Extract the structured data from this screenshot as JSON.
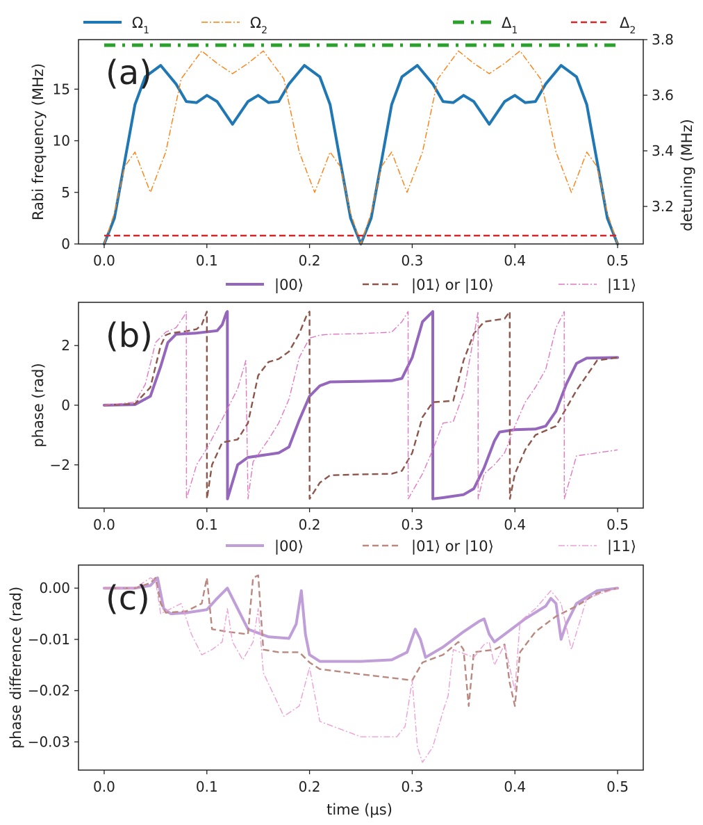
{
  "figure": {
    "panels": [
      "(a)",
      "(b)",
      "(c)"
    ]
  },
  "chart_data": [
    {
      "type": "line",
      "panel_label": "(a)",
      "xlabel": "",
      "ylabel": "Rabi frequency (MHz)",
      "ylabel_right": "detuning (MHz)",
      "xlim": [
        -0.025,
        0.525
      ],
      "ylim": [
        0,
        19.8
      ],
      "ylim_right": [
        3.065,
        3.8
      ],
      "xticks": [
        "0.0",
        "0.1",
        "0.2",
        "0.3",
        "0.4",
        "0.5"
      ],
      "xtick_values": [
        0.0,
        0.1,
        0.2,
        0.3,
        0.4,
        0.5
      ],
      "yticks": [
        "0",
        "5",
        "10",
        "15"
      ],
      "ytick_values": [
        0,
        5,
        10,
        15
      ],
      "yticks_right": [
        "3.2",
        "3.4",
        "3.6",
        "3.8"
      ],
      "ytick_right_values": [
        3.2,
        3.4,
        3.6,
        3.8
      ],
      "legend": [
        {
          "label": "Ω",
          "sub": "1",
          "color": "#1f77b4",
          "style": "solid-thick"
        },
        {
          "label": "Ω",
          "sub": "2",
          "color": "#ff7f0e",
          "style": "dashdot"
        },
        {
          "label": "Δ",
          "sub": "1",
          "color": "#2ca02c",
          "style": "dashdot-thick"
        },
        {
          "label": "Δ",
          "sub": "2",
          "color": "#d62728",
          "style": "dashed"
        }
      ],
      "series": [
        {
          "name": "Ω1",
          "axis": "left",
          "color": "#1f77b4",
          "x": [
            0.0,
            0.01,
            0.02,
            0.03,
            0.04,
            0.055,
            0.07,
            0.08,
            0.09,
            0.1,
            0.11,
            0.125,
            0.14,
            0.15,
            0.16,
            0.17,
            0.18,
            0.195,
            0.21,
            0.22,
            0.23,
            0.24,
            0.25,
            0.26,
            0.27,
            0.28,
            0.29,
            0.305,
            0.32,
            0.33,
            0.34,
            0.35,
            0.36,
            0.375,
            0.39,
            0.4,
            0.41,
            0.42,
            0.43,
            0.445,
            0.46,
            0.47,
            0.48,
            0.49,
            0.5
          ],
          "y": [
            0,
            2.5,
            8.0,
            13.5,
            16.2,
            17.3,
            15.5,
            13.8,
            13.7,
            14.4,
            13.8,
            11.6,
            13.8,
            14.4,
            13.7,
            13.8,
            15.5,
            17.3,
            16.2,
            13.5,
            8.0,
            2.5,
            0,
            2.5,
            8.0,
            13.5,
            16.2,
            17.3,
            15.5,
            13.8,
            13.7,
            14.4,
            13.8,
            11.6,
            13.8,
            14.4,
            13.7,
            13.8,
            15.5,
            17.3,
            16.2,
            13.5,
            8.0,
            2.5,
            0
          ]
        },
        {
          "name": "Ω2",
          "axis": "left",
          "color": "#ff7f0e",
          "x": [
            0.0,
            0.01,
            0.02,
            0.03,
            0.045,
            0.06,
            0.075,
            0.095,
            0.11,
            0.125,
            0.14,
            0.155,
            0.175,
            0.19,
            0.205,
            0.22,
            0.23,
            0.24,
            0.25,
            0.26,
            0.27,
            0.28,
            0.295,
            0.31,
            0.325,
            0.345,
            0.36,
            0.375,
            0.39,
            0.405,
            0.425,
            0.44,
            0.455,
            0.47,
            0.48,
            0.49,
            0.5
          ],
          "y": [
            0,
            3.0,
            7.5,
            8.9,
            5.0,
            8.9,
            16.0,
            18.7,
            17.5,
            16.5,
            17.5,
            18.7,
            16.0,
            8.9,
            5.0,
            8.9,
            7.5,
            3.0,
            0,
            3.0,
            7.5,
            8.9,
            5.0,
            8.9,
            16.0,
            18.7,
            17.5,
            16.5,
            17.5,
            18.7,
            16.0,
            8.9,
            5.0,
            8.9,
            7.5,
            3.0,
            0
          ]
        },
        {
          "name": "Δ1",
          "axis": "right",
          "color": "#2ca02c",
          "x": [
            0.0,
            0.5
          ],
          "y": [
            3.78,
            3.78
          ]
        },
        {
          "name": "Δ2",
          "axis": "right",
          "color": "#d62728",
          "x": [
            0.0,
            0.5
          ],
          "y": [
            3.095,
            3.095
          ]
        }
      ]
    },
    {
      "type": "line",
      "panel_label": "(b)",
      "xlabel": "",
      "ylabel": "phase (rad)",
      "xlim": [
        -0.025,
        0.525
      ],
      "ylim": [
        -3.45,
        3.45
      ],
      "xticks": [
        "0.0",
        "0.1",
        "0.2",
        "0.3",
        "0.4",
        "0.5"
      ],
      "xtick_values": [
        0.0,
        0.1,
        0.2,
        0.3,
        0.4,
        0.5
      ],
      "yticks": [
        "2",
        "0",
        "−2"
      ],
      "ytick_values": [
        2,
        0,
        -2
      ],
      "legend": [
        {
          "label": "|00⟩",
          "color": "#9467bd",
          "style": "solid-thick"
        },
        {
          "label": "|01⟩ or |10⟩",
          "color": "#8c564b",
          "style": "dashed"
        },
        {
          "label": "|11⟩",
          "color": "#e377c2",
          "style": "dashdot"
        }
      ],
      "series": [
        {
          "name": "|00⟩",
          "color": "#9467bd",
          "x": [
            0.0,
            0.03,
            0.045,
            0.055,
            0.062,
            0.07,
            0.09,
            0.11,
            0.115,
            0.119,
            0.12,
            0.1201,
            0.13,
            0.14,
            0.16,
            0.17,
            0.18,
            0.19,
            0.2,
            0.21,
            0.22,
            0.25,
            0.28,
            0.29,
            0.3,
            0.31,
            0.32,
            0.3201,
            0.33,
            0.35,
            0.36,
            0.37,
            0.38,
            0.385,
            0.4,
            0.42,
            0.43,
            0.44,
            0.45,
            0.46,
            0.47,
            0.5
          ],
          "y": [
            0,
            0.02,
            0.3,
            1.3,
            2.1,
            2.38,
            2.42,
            2.5,
            2.7,
            3.1,
            3.14,
            -3.14,
            -2.0,
            -1.75,
            -1.65,
            -1.6,
            -1.4,
            -0.5,
            0.3,
            0.65,
            0.78,
            0.8,
            0.82,
            0.9,
            1.6,
            2.8,
            3.14,
            -3.14,
            -3.1,
            -3.0,
            -2.8,
            -2.1,
            -1.2,
            -0.9,
            -0.82,
            -0.8,
            -0.7,
            -0.2,
            0.7,
            1.4,
            1.58,
            1.6
          ]
        },
        {
          "name": "|01⟩ or |10⟩",
          "color": "#8c564b",
          "x": [
            0.0,
            0.03,
            0.045,
            0.055,
            0.06,
            0.065,
            0.08,
            0.09,
            0.095,
            0.1,
            0.1001,
            0.105,
            0.115,
            0.13,
            0.14,
            0.15,
            0.16,
            0.17,
            0.18,
            0.19,
            0.197,
            0.2,
            0.2001,
            0.21,
            0.22,
            0.25,
            0.28,
            0.29,
            0.3,
            0.31,
            0.32,
            0.34,
            0.35,
            0.36,
            0.37,
            0.38,
            0.39,
            0.395,
            0.3951,
            0.4,
            0.41,
            0.42,
            0.44,
            0.46,
            0.48,
            0.5
          ],
          "y": [
            0,
            0.05,
            0.6,
            2.0,
            2.35,
            2.42,
            2.48,
            2.55,
            2.7,
            3.14,
            -3.14,
            -2.0,
            -1.25,
            -1.15,
            -0.6,
            1.0,
            1.45,
            1.55,
            1.8,
            2.4,
            3.0,
            3.14,
            -3.14,
            -2.6,
            -2.35,
            -2.32,
            -2.3,
            -2.2,
            -1.6,
            -0.4,
            0.1,
            0.15,
            1.5,
            2.4,
            2.8,
            2.85,
            2.9,
            3.14,
            -3.14,
            -2.3,
            -1.5,
            -1.0,
            -0.7,
            0.5,
            1.5,
            1.6
          ]
        },
        {
          "name": "|11⟩",
          "color": "#e377c2",
          "x": [
            0.0,
            0.03,
            0.04,
            0.05,
            0.06,
            0.07,
            0.078,
            0.08,
            0.0801,
            0.09,
            0.1,
            0.11,
            0.13,
            0.138,
            0.1401,
            0.145,
            0.16,
            0.17,
            0.18,
            0.19,
            0.2,
            0.21,
            0.22,
            0.25,
            0.28,
            0.29,
            0.296,
            0.2961,
            0.31,
            0.32,
            0.33,
            0.34,
            0.35,
            0.36,
            0.3641,
            0.3642,
            0.37,
            0.38,
            0.39,
            0.4,
            0.41,
            0.42,
            0.43,
            0.44,
            0.448,
            0.4481,
            0.46,
            0.5
          ],
          "y": [
            0,
            0.1,
            0.7,
            2.1,
            2.45,
            2.6,
            3.0,
            3.14,
            -3.14,
            -2.0,
            -1.45,
            -0.8,
            0.55,
            1.5,
            -3.14,
            -1.9,
            -1.15,
            -0.6,
            0.2,
            1.6,
            2.25,
            2.35,
            2.38,
            2.4,
            2.45,
            2.8,
            3.14,
            -3.14,
            -2.3,
            -1.5,
            -0.6,
            -0.55,
            0.4,
            2.3,
            3.14,
            -3.14,
            -2.3,
            -2.0,
            -1.6,
            -0.7,
            0.1,
            0.6,
            1.2,
            2.6,
            3.14,
            -3.14,
            -1.7,
            -1.5
          ]
        }
      ]
    },
    {
      "type": "line",
      "panel_label": "(c)",
      "xlabel": "time (μs)",
      "ylabel": "phase difference (rad)",
      "xlim": [
        -0.025,
        0.525
      ],
      "ylim": [
        -0.0355,
        0.0045
      ],
      "xticks": [
        "0.0",
        "0.1",
        "0.2",
        "0.3",
        "0.4",
        "0.5"
      ],
      "xtick_values": [
        0.0,
        0.1,
        0.2,
        0.3,
        0.4,
        0.5
      ],
      "yticks": [
        "0.00",
        "−0.01",
        "−0.02",
        "−0.03"
      ],
      "ytick_values": [
        0.0,
        -0.01,
        -0.02,
        -0.03
      ],
      "legend": [
        {
          "label": "|00⟩",
          "color": "#c09fd9",
          "style": "solid-thick"
        },
        {
          "label": "|01⟩ or |10⟩",
          "color": "#b9887f",
          "style": "dashed"
        },
        {
          "label": "|11⟩",
          "color": "#ee9fd6",
          "style": "dashdot"
        }
      ],
      "series": [
        {
          "name": "|00⟩",
          "color": "#c09fd9",
          "x": [
            0.0,
            0.03,
            0.045,
            0.052,
            0.058,
            0.065,
            0.08,
            0.1,
            0.11,
            0.12,
            0.13,
            0.14,
            0.16,
            0.18,
            0.187,
            0.192,
            0.196,
            0.2,
            0.21,
            0.25,
            0.28,
            0.295,
            0.303,
            0.308,
            0.313,
            0.33,
            0.35,
            0.365,
            0.37,
            0.375,
            0.38,
            0.39,
            0.41,
            0.43,
            0.435,
            0.44,
            0.445,
            0.45,
            0.46,
            0.48,
            0.5
          ],
          "y": [
            0,
            0,
            0.0005,
            0.002,
            -0.004,
            -0.005,
            -0.0048,
            -0.0042,
            -0.002,
            0,
            -0.004,
            -0.008,
            -0.0095,
            -0.0098,
            -0.007,
            -0.0005,
            -0.009,
            -0.013,
            -0.0143,
            -0.0143,
            -0.014,
            -0.0125,
            -0.008,
            -0.01,
            -0.0135,
            -0.0115,
            -0.0085,
            -0.0065,
            -0.006,
            -0.009,
            -0.0105,
            -0.009,
            -0.006,
            -0.0035,
            -0.002,
            -0.003,
            -0.01,
            -0.007,
            -0.003,
            -0.0005,
            0
          ]
        },
        {
          "name": "|01⟩ or |10⟩",
          "color": "#b9887f",
          "x": [
            0.0,
            0.03,
            0.045,
            0.05,
            0.055,
            0.06,
            0.08,
            0.095,
            0.1,
            0.105,
            0.12,
            0.14,
            0.145,
            0.15,
            0.155,
            0.17,
            0.19,
            0.2,
            0.21,
            0.25,
            0.28,
            0.3,
            0.31,
            0.33,
            0.345,
            0.35,
            0.355,
            0.36,
            0.38,
            0.39,
            0.395,
            0.4,
            0.405,
            0.42,
            0.44,
            0.46,
            0.48,
            0.5
          ],
          "y": [
            0,
            0,
            0.001,
            0.002,
            -0.003,
            -0.0048,
            -0.0045,
            -0.003,
            0.002,
            -0.008,
            -0.0085,
            -0.009,
            0.002,
            0.0025,
            -0.012,
            -0.0125,
            -0.0125,
            -0.0145,
            -0.0158,
            -0.0168,
            -0.0175,
            -0.018,
            -0.0145,
            -0.013,
            -0.0105,
            -0.012,
            -0.023,
            -0.0125,
            -0.012,
            -0.011,
            -0.0185,
            -0.023,
            -0.0125,
            -0.0085,
            -0.0055,
            -0.0035,
            -0.001,
            0
          ]
        },
        {
          "name": "|11⟩",
          "color": "#ee9fd6",
          "x": [
            0.0,
            0.03,
            0.045,
            0.05,
            0.055,
            0.065,
            0.075,
            0.085,
            0.095,
            0.105,
            0.115,
            0.12,
            0.125,
            0.135,
            0.145,
            0.15,
            0.155,
            0.175,
            0.19,
            0.2,
            0.21,
            0.25,
            0.285,
            0.293,
            0.3,
            0.305,
            0.31,
            0.32,
            0.33,
            0.335,
            0.34,
            0.36,
            0.37,
            0.375,
            0.38,
            0.39,
            0.4,
            0.405,
            0.42,
            0.435,
            0.445,
            0.455,
            0.47,
            0.5
          ],
          "y": [
            0,
            0,
            0.002,
            0.0015,
            -0.005,
            -0.004,
            -0.003,
            -0.009,
            -0.013,
            -0.012,
            -0.0105,
            -0.004,
            -0.0105,
            -0.014,
            -0.0105,
            -0.004,
            -0.0165,
            -0.025,
            -0.023,
            -0.0155,
            -0.026,
            -0.029,
            -0.029,
            -0.027,
            -0.018,
            -0.031,
            -0.034,
            -0.031,
            -0.024,
            -0.021,
            -0.012,
            -0.0135,
            -0.011,
            -0.0105,
            -0.015,
            -0.011,
            -0.02,
            -0.0065,
            -0.004,
            -0.0005,
            -0.003,
            -0.012,
            -0.002,
            0
          ]
        }
      ]
    }
  ]
}
